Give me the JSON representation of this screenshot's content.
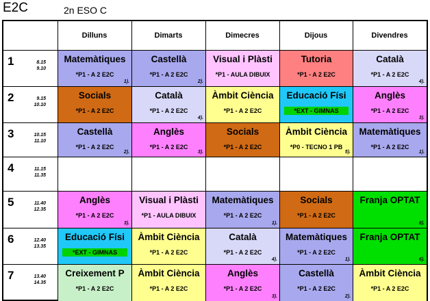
{
  "header": {
    "code": "E2C",
    "group": "2n ESO C"
  },
  "days": [
    "Dilluns",
    "Dimarts",
    "Dimecres",
    "Dijous",
    "Divendres"
  ],
  "colors": {
    "blue": "#a8a8ee",
    "pink": "#ff80ff",
    "lavender": "#d8d8f8",
    "lilac": "#ffc4ff",
    "salmon": "#ff8080",
    "orange": "#d06a14",
    "yellow": "#ffff90",
    "cyan": "#20c8f8",
    "green": "#00e000",
    "lightgreen": "#c8f0c8",
    "badge": "#00d200"
  },
  "periods": [
    {
      "num": "1",
      "start": "8.15",
      "end": "9.10"
    },
    {
      "num": "2",
      "start": "9.15",
      "end": "10.10"
    },
    {
      "num": "3",
      "start": "10.15",
      "end": "11.10"
    },
    {
      "num": "4",
      "start": "11.15",
      "end": "11.35"
    },
    {
      "num": "5",
      "start": "11.40",
      "end": "12.35"
    },
    {
      "num": "6",
      "start": "12.40",
      "end": "13.35"
    },
    {
      "num": "7",
      "start": "13.40",
      "end": "14.35"
    }
  ],
  "cells": [
    [
      {
        "subject": "Matemàtiques",
        "room": "*P1 - A 2 E2C",
        "note": "1).",
        "color": "blue"
      },
      {
        "subject": "Castellà",
        "room": "*P1 - A 2 E2C",
        "note": "2).",
        "color": "blue"
      },
      {
        "subject": "Visual i Plàsti",
        "room": "*P1 - AULA DIBUIX",
        "note": "",
        "color": "lilac"
      },
      {
        "subject": "Tutoria",
        "room": "*P1 - A 2 E2C",
        "note": "",
        "color": "salmon"
      },
      {
        "subject": "Català",
        "room": "*P1 - A 2 E2C",
        "note": "4).",
        "color": "lavender"
      }
    ],
    [
      {
        "subject": "Socials",
        "room": "*P1 - A 2 E2C",
        "note": "",
        "color": "orange"
      },
      {
        "subject": "Català",
        "room": "*P1 - A 2 E2C",
        "note": "4).",
        "color": "lavender"
      },
      {
        "subject": "Àmbit Ciència",
        "room": "*P1 - A 2 E2C",
        "note": "",
        "color": "yellow"
      },
      {
        "subject": "Educació Físi",
        "room": "*EXT - GIMNAS",
        "note": "",
        "color": "cyan",
        "badge": true
      },
      {
        "subject": "Anglès",
        "room": "*P1 - A 2 E2C",
        "note": "3).",
        "color": "pink"
      }
    ],
    [
      {
        "subject": "Castellà",
        "room": "*P1 - A 2 E2C",
        "note": "2).",
        "color": "blue"
      },
      {
        "subject": "Anglès",
        "room": "*P1 - A 2 E2C",
        "note": "3).",
        "color": "pink"
      },
      {
        "subject": "Socials",
        "room": "*P1 - A 2 E2C",
        "note": "",
        "color": "orange"
      },
      {
        "subject": "Àmbit Ciència",
        "room": "*P0 - TECNO 1 PB",
        "note": "5).",
        "color": "yellow"
      },
      {
        "subject": "Matemàtiques",
        "room": "*P1 - A 2 E2C",
        "note": "1).",
        "color": "blue"
      }
    ],
    [
      null,
      null,
      null,
      null,
      null
    ],
    [
      {
        "subject": "Anglès",
        "room": "*P1 - A 2 E2C",
        "note": "3).",
        "color": "pink"
      },
      {
        "subject": "Visual i Plàsti",
        "room": "*P1 - AULA DIBUIX",
        "note": "",
        "color": "lilac"
      },
      {
        "subject": "Matemàtiques",
        "room": "*P1 - A 2 E2C",
        "note": "1).",
        "color": "blue"
      },
      {
        "subject": "Socials",
        "room": "*P1 - A 2 E2C",
        "note": "",
        "color": "orange"
      },
      {
        "subject": "Franja OPTAT",
        "room": "",
        "note": "6).",
        "color": "green"
      }
    ],
    [
      {
        "subject": "Educació Físi",
        "room": "*EXT - GIMNAS",
        "note": "",
        "color": "cyan",
        "badge": true
      },
      {
        "subject": "Àmbit Ciència",
        "room": "*P1 - A 2 E2C",
        "note": "",
        "color": "yellow"
      },
      {
        "subject": "Català",
        "room": "*P1 - A 2 E2C",
        "note": "4).",
        "color": "lavender"
      },
      {
        "subject": "Matemàtiques",
        "room": "*P1 - A 2 E2C",
        "note": "1).",
        "color": "blue"
      },
      {
        "subject": "Franja OPTAT",
        "room": "",
        "note": "6).",
        "color": "green"
      }
    ],
    [
      {
        "subject": "Creixement P",
        "room": "*P1 - A 2 E2C",
        "note": "",
        "color": "lightgreen"
      },
      {
        "subject": "Àmbit Ciència",
        "room": "*P1 - A 2 E2C",
        "note": "",
        "color": "yellow"
      },
      {
        "subject": "Anglès",
        "room": "*P1 - A 2 E2C",
        "note": "3).",
        "color": "pink"
      },
      {
        "subject": "Castellà",
        "room": "*P1 - A 2 E2C",
        "note": "2).",
        "color": "blue"
      },
      {
        "subject": "Àmbit Ciència",
        "room": "*P1 - A 2 E2C",
        "note": "",
        "color": "yellow"
      }
    ]
  ]
}
